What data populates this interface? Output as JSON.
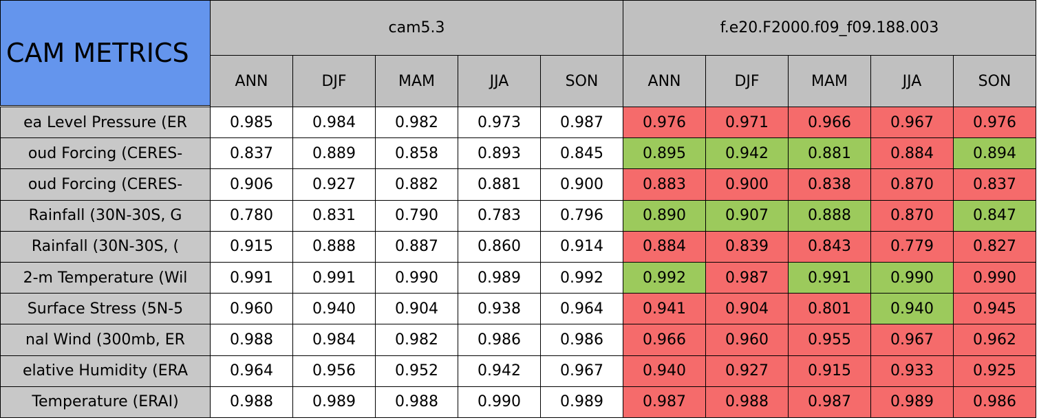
{
  "header": {
    "title": "CAM METRICS",
    "groups": [
      {
        "name": "cam5.3",
        "seasons": [
          "ANN",
          "DJF",
          "MAM",
          "JJA",
          "SON"
        ]
      },
      {
        "name": "f.e20.F2000.f09_f09.188.003",
        "seasons": [
          "ANN",
          "DJF",
          "MAM",
          "JJA",
          "SON"
        ]
      }
    ]
  },
  "rows": [
    {
      "label": "ea Level Pressure (ER",
      "values": [
        "0.985",
        "0.984",
        "0.982",
        "0.973",
        "0.987",
        "0.976",
        "0.971",
        "0.966",
        "0.967",
        "0.976"
      ],
      "colors": [
        "#ffffff",
        "#ffffff",
        "#ffffff",
        "#ffffff",
        "#ffffff",
        "#f56b6b",
        "#f56b6b",
        "#f56b6b",
        "#f56b6b",
        "#f56b6b"
      ]
    },
    {
      "label": "oud Forcing (CERES-",
      "values": [
        "0.837",
        "0.889",
        "0.858",
        "0.893",
        "0.845",
        "0.895",
        "0.942",
        "0.881",
        "0.884",
        "0.894"
      ],
      "colors": [
        "#ffffff",
        "#ffffff",
        "#ffffff",
        "#ffffff",
        "#ffffff",
        "#9cca5c",
        "#9cca5c",
        "#9cca5c",
        "#f56b6b",
        "#9cca5c"
      ]
    },
    {
      "label": "oud Forcing (CERES-",
      "values": [
        "0.906",
        "0.927",
        "0.882",
        "0.881",
        "0.900",
        "0.883",
        "0.900",
        "0.838",
        "0.870",
        "0.837"
      ],
      "colors": [
        "#ffffff",
        "#ffffff",
        "#ffffff",
        "#ffffff",
        "#ffffff",
        "#f56b6b",
        "#f56b6b",
        "#f56b6b",
        "#f56b6b",
        "#f56b6b"
      ]
    },
    {
      "label": "Rainfall (30N-30S, G",
      "values": [
        "0.780",
        "0.831",
        "0.790",
        "0.783",
        "0.796",
        "0.890",
        "0.907",
        "0.888",
        "0.870",
        "0.847"
      ],
      "colors": [
        "#ffffff",
        "#ffffff",
        "#ffffff",
        "#ffffff",
        "#ffffff",
        "#9cca5c",
        "#9cca5c",
        "#9cca5c",
        "#f56b6b",
        "#9cca5c"
      ]
    },
    {
      "label": "Rainfall (30N-30S, (",
      "values": [
        "0.915",
        "0.888",
        "0.887",
        "0.860",
        "0.914",
        "0.884",
        "0.839",
        "0.843",
        "0.779",
        "0.827"
      ],
      "colors": [
        "#ffffff",
        "#ffffff",
        "#ffffff",
        "#ffffff",
        "#ffffff",
        "#f56b6b",
        "#f56b6b",
        "#f56b6b",
        "#f56b6b",
        "#f56b6b"
      ]
    },
    {
      "label": "2-m Temperature (Wil",
      "values": [
        "0.991",
        "0.991",
        "0.990",
        "0.989",
        "0.992",
        "0.992",
        "0.987",
        "0.991",
        "0.990",
        "0.990"
      ],
      "colors": [
        "#ffffff",
        "#ffffff",
        "#ffffff",
        "#ffffff",
        "#ffffff",
        "#9cca5c",
        "#f56b6b",
        "#9cca5c",
        "#9cca5c",
        "#f56b6b"
      ]
    },
    {
      "label": "Surface Stress (5N-5",
      "values": [
        "0.960",
        "0.940",
        "0.904",
        "0.938",
        "0.964",
        "0.941",
        "0.904",
        "0.801",
        "0.940",
        "0.945"
      ],
      "colors": [
        "#ffffff",
        "#ffffff",
        "#ffffff",
        "#ffffff",
        "#ffffff",
        "#f56b6b",
        "#f56b6b",
        "#f56b6b",
        "#9cca5c",
        "#f56b6b"
      ]
    },
    {
      "label": "nal Wind (300mb, ER",
      "values": [
        "0.988",
        "0.984",
        "0.982",
        "0.986",
        "0.986",
        "0.966",
        "0.960",
        "0.955",
        "0.967",
        "0.962"
      ],
      "colors": [
        "#ffffff",
        "#ffffff",
        "#ffffff",
        "#ffffff",
        "#ffffff",
        "#f56b6b",
        "#f56b6b",
        "#f56b6b",
        "#f56b6b",
        "#f56b6b"
      ]
    },
    {
      "label": "elative Humidity (ERA",
      "values": [
        "0.964",
        "0.956",
        "0.952",
        "0.942",
        "0.967",
        "0.940",
        "0.927",
        "0.915",
        "0.933",
        "0.925"
      ],
      "colors": [
        "#ffffff",
        "#ffffff",
        "#ffffff",
        "#ffffff",
        "#ffffff",
        "#f56b6b",
        "#f56b6b",
        "#f56b6b",
        "#f56b6b",
        "#f56b6b"
      ]
    },
    {
      "label": "Temperature (ERAI)",
      "values": [
        "0.988",
        "0.989",
        "0.988",
        "0.990",
        "0.989",
        "0.987",
        "0.988",
        "0.987",
        "0.989",
        "0.986"
      ],
      "colors": [
        "#ffffff",
        "#ffffff",
        "#ffffff",
        "#ffffff",
        "#ffffff",
        "#f56b6b",
        "#f56b6b",
        "#f56b6b",
        "#f56b6b",
        "#f56b6b"
      ]
    }
  ]
}
